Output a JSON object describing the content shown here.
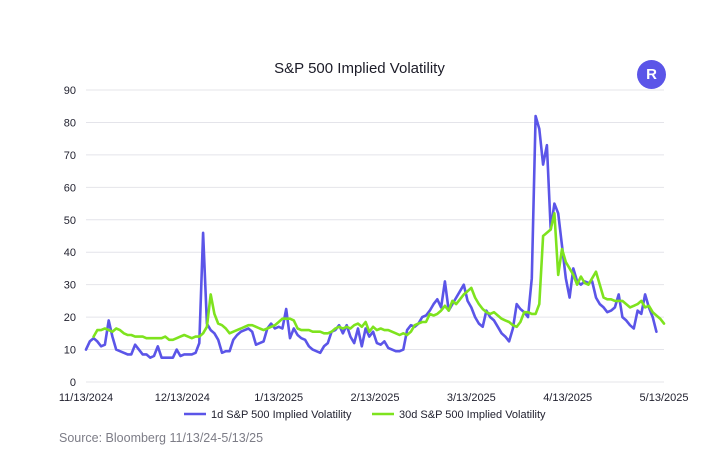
{
  "header": {
    "logo_letter": "R",
    "logo_color": "#5b55e8"
  },
  "source": "Source: Bloomberg 11/13/24-5/13/25",
  "chart_data": {
    "type": "line",
    "title": "S&P 500 Implied Volatility",
    "xlabel": "",
    "ylabel": "",
    "ylim": [
      0,
      90
    ],
    "y_ticks": [
      0,
      10,
      20,
      30,
      40,
      50,
      60,
      70,
      80,
      90
    ],
    "x_tick_labels": [
      "11/13/2024",
      "12/13/2024",
      "1/13/2025",
      "2/13/2025",
      "3/13/2025",
      "4/13/2025",
      "5/13/2025"
    ],
    "grid": "horizontal",
    "legend_position": "bottom",
    "series": [
      {
        "name": "1d S&P 500 Implied Volatility",
        "color": "#5b55e8",
        "values": [
          10.0,
          12.5,
          13.5,
          12.5,
          11.0,
          11.5,
          19.0,
          14.0,
          10.0,
          9.5,
          9.0,
          8.5,
          8.5,
          11.5,
          10.0,
          8.5,
          8.5,
          7.5,
          8.0,
          11.0,
          7.5,
          7.5,
          7.5,
          7.5,
          10.0,
          8.0,
          8.5,
          8.5,
          8.5,
          9.0,
          12.0,
          46.0,
          18.0,
          16.0,
          15.0,
          13.0,
          9.0,
          9.5,
          9.5,
          13.0,
          14.5,
          15.5,
          16.0,
          16.5,
          15.5,
          11.5,
          12.0,
          12.5,
          16.5,
          18.0,
          16.5,
          17.0,
          16.5,
          22.5,
          13.5,
          16.5,
          14.5,
          13.5,
          13.0,
          11.0,
          10.0,
          9.5,
          9.0,
          11.0,
          12.0,
          15.5,
          16.0,
          17.5,
          15.0,
          17.5,
          14.0,
          12.0,
          16.5,
          11.0,
          16.5,
          14.0,
          15.5,
          12.0,
          11.5,
          12.5,
          10.5,
          10.0,
          9.5,
          9.5,
          10.0,
          16.0,
          17.5,
          17.0,
          18.0,
          20.0,
          20.5,
          22.0,
          24.0,
          25.5,
          23.0,
          31.0,
          22.0,
          24.0,
          26.0,
          28.0,
          30.0,
          25.0,
          23.0,
          20.0,
          18.0,
          17.0,
          22.0,
          20.0,
          19.0,
          17.0,
          15.0,
          14.0,
          12.5,
          16.5,
          24.0,
          22.5,
          21.5,
          20.0,
          32.0,
          82.0,
          78.0,
          67.0,
          73.0,
          47.0,
          55.0,
          52.0,
          42.0,
          32.0,
          26.0,
          35.0,
          31.0,
          30.0,
          31.0,
          30.5,
          31.0,
          26.0,
          24.0,
          23.0,
          21.5,
          22.0,
          23.0,
          27.0,
          20.0,
          19.0,
          17.5,
          16.5,
          22.0,
          21.0,
          27.0,
          23.0,
          20.0,
          15.5
        ],
        "x_start": 0
      },
      {
        "name": "30d S&P 500 Implied Volatility",
        "color": "#7ee31e",
        "values": [
          14.0,
          16.0,
          16.0,
          16.5,
          16.0,
          15.5,
          16.5,
          16.0,
          15.0,
          14.5,
          14.5,
          14.0,
          14.0,
          14.0,
          13.5,
          13.5,
          13.5,
          13.5,
          13.5,
          14.0,
          13.0,
          13.0,
          13.5,
          14.0,
          14.5,
          14.0,
          13.5,
          14.0,
          14.0,
          15.0,
          17.0,
          27.0,
          21.0,
          18.0,
          17.5,
          16.5,
          15.0,
          15.5,
          16.0,
          16.5,
          17.0,
          17.5,
          17.5,
          17.0,
          16.5,
          16.0,
          16.5,
          17.0,
          17.5,
          18.5,
          19.5,
          19.5,
          19.5,
          19.0,
          16.5,
          16.0,
          16.0,
          16.0,
          15.5,
          15.5,
          15.5,
          15.0,
          15.0,
          15.5,
          16.5,
          17.0,
          16.5,
          17.0,
          16.5,
          17.5,
          18.0,
          17.0,
          18.5,
          15.5,
          17.0,
          16.0,
          16.5,
          16.0,
          16.0,
          15.5,
          15.0,
          14.5,
          15.0,
          14.5,
          15.5,
          17.5,
          18.0,
          18.5,
          18.5,
          21.0,
          20.5,
          21.0,
          22.0,
          23.5,
          22.0,
          25.0,
          24.0,
          25.5,
          27.0,
          28.0,
          29.0,
          26.0,
          24.0,
          22.5,
          21.5,
          21.0,
          21.5,
          20.5,
          19.5,
          19.0,
          18.5,
          17.5,
          17.0,
          18.5,
          21.5,
          21.5,
          21.0,
          21.0,
          24.0,
          45.0,
          46.0,
          47.0,
          52.0,
          33.0,
          41.0,
          37.0,
          35.0,
          33.0,
          30.0,
          32.5,
          30.5,
          30.0,
          32.0,
          34.0,
          30.0,
          26.0,
          25.5,
          25.5,
          25.0,
          25.0,
          25.0,
          24.0,
          23.0,
          23.5,
          24.0,
          25.0,
          23.0,
          23.5,
          21.5,
          20.5,
          19.5,
          18.0
        ],
        "x_start": 2
      }
    ]
  }
}
